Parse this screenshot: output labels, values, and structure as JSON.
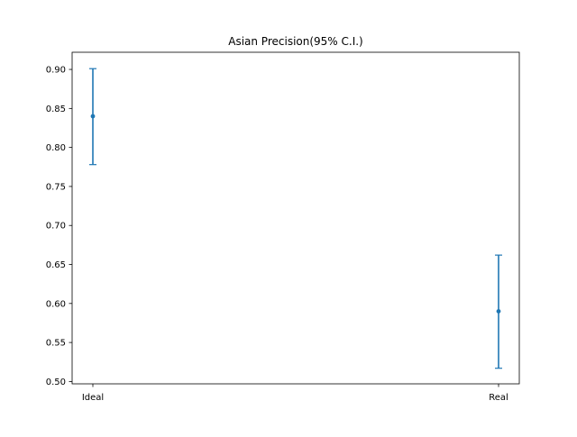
{
  "chart_data": {
    "type": "errorbar",
    "title": "Asian Precision(95% C.I.)",
    "xlabel": "",
    "ylabel": "",
    "categories": [
      "Ideal",
      "Real"
    ],
    "series": [
      {
        "values": [
          0.84,
          0.59
        ],
        "lower": [
          0.778,
          0.517
        ],
        "upper": [
          0.901,
          0.662
        ]
      }
    ],
    "ylim": [
      0.497,
      0.922
    ],
    "yticks": [
      "0.50",
      "0.55",
      "0.60",
      "0.65",
      "0.70",
      "0.75",
      "0.80",
      "0.85",
      "0.90"
    ],
    "grid": false,
    "colors": {
      "series": "#1f77b4",
      "axes": "#000000"
    }
  }
}
